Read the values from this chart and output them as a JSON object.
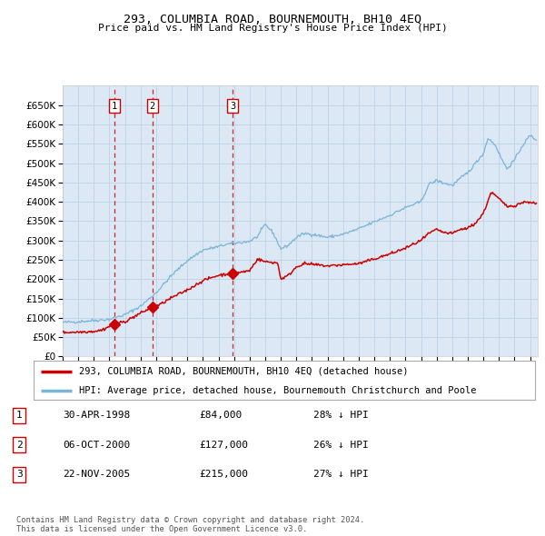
{
  "title": "293, COLUMBIA ROAD, BOURNEMOUTH, BH10 4EQ",
  "subtitle": "Price paid vs. HM Land Registry's House Price Index (HPI)",
  "plot_bg_color": "#dce9f5",
  "grid_color": "#b8cfe8",
  "hpi_color": "#7ab4d8",
  "price_color": "#cc0000",
  "marker_color": "#cc0000",
  "vline_color": "#cc0000",
  "transactions": [
    {
      "date_year": 1998.33,
      "price": 84000,
      "label": "1"
    },
    {
      "date_year": 2000.75,
      "price": 127000,
      "label": "2"
    },
    {
      "date_year": 2005.9,
      "price": 215000,
      "label": "3"
    }
  ],
  "table_rows": [
    {
      "num": "1",
      "date": "30-APR-1998",
      "price": "£84,000",
      "hpi": "28% ↓ HPI"
    },
    {
      "num": "2",
      "date": "06-OCT-2000",
      "price": "£127,000",
      "hpi": "26% ↓ HPI"
    },
    {
      "num": "3",
      "date": "22-NOV-2005",
      "price": "£215,000",
      "hpi": "27% ↓ HPI"
    }
  ],
  "legend_line1": "293, COLUMBIA ROAD, BOURNEMOUTH, BH10 4EQ (detached house)",
  "legend_line2": "HPI: Average price, detached house, Bournemouth Christchurch and Poole",
  "footer": "Contains HM Land Registry data © Crown copyright and database right 2024.\nThis data is licensed under the Open Government Licence v3.0.",
  "ylim": [
    0,
    700000
  ],
  "yticks": [
    0,
    50000,
    100000,
    150000,
    200000,
    250000,
    300000,
    350000,
    400000,
    450000,
    500000,
    550000,
    600000,
    650000
  ],
  "xmin": 1995.0,
  "xmax": 2025.5
}
